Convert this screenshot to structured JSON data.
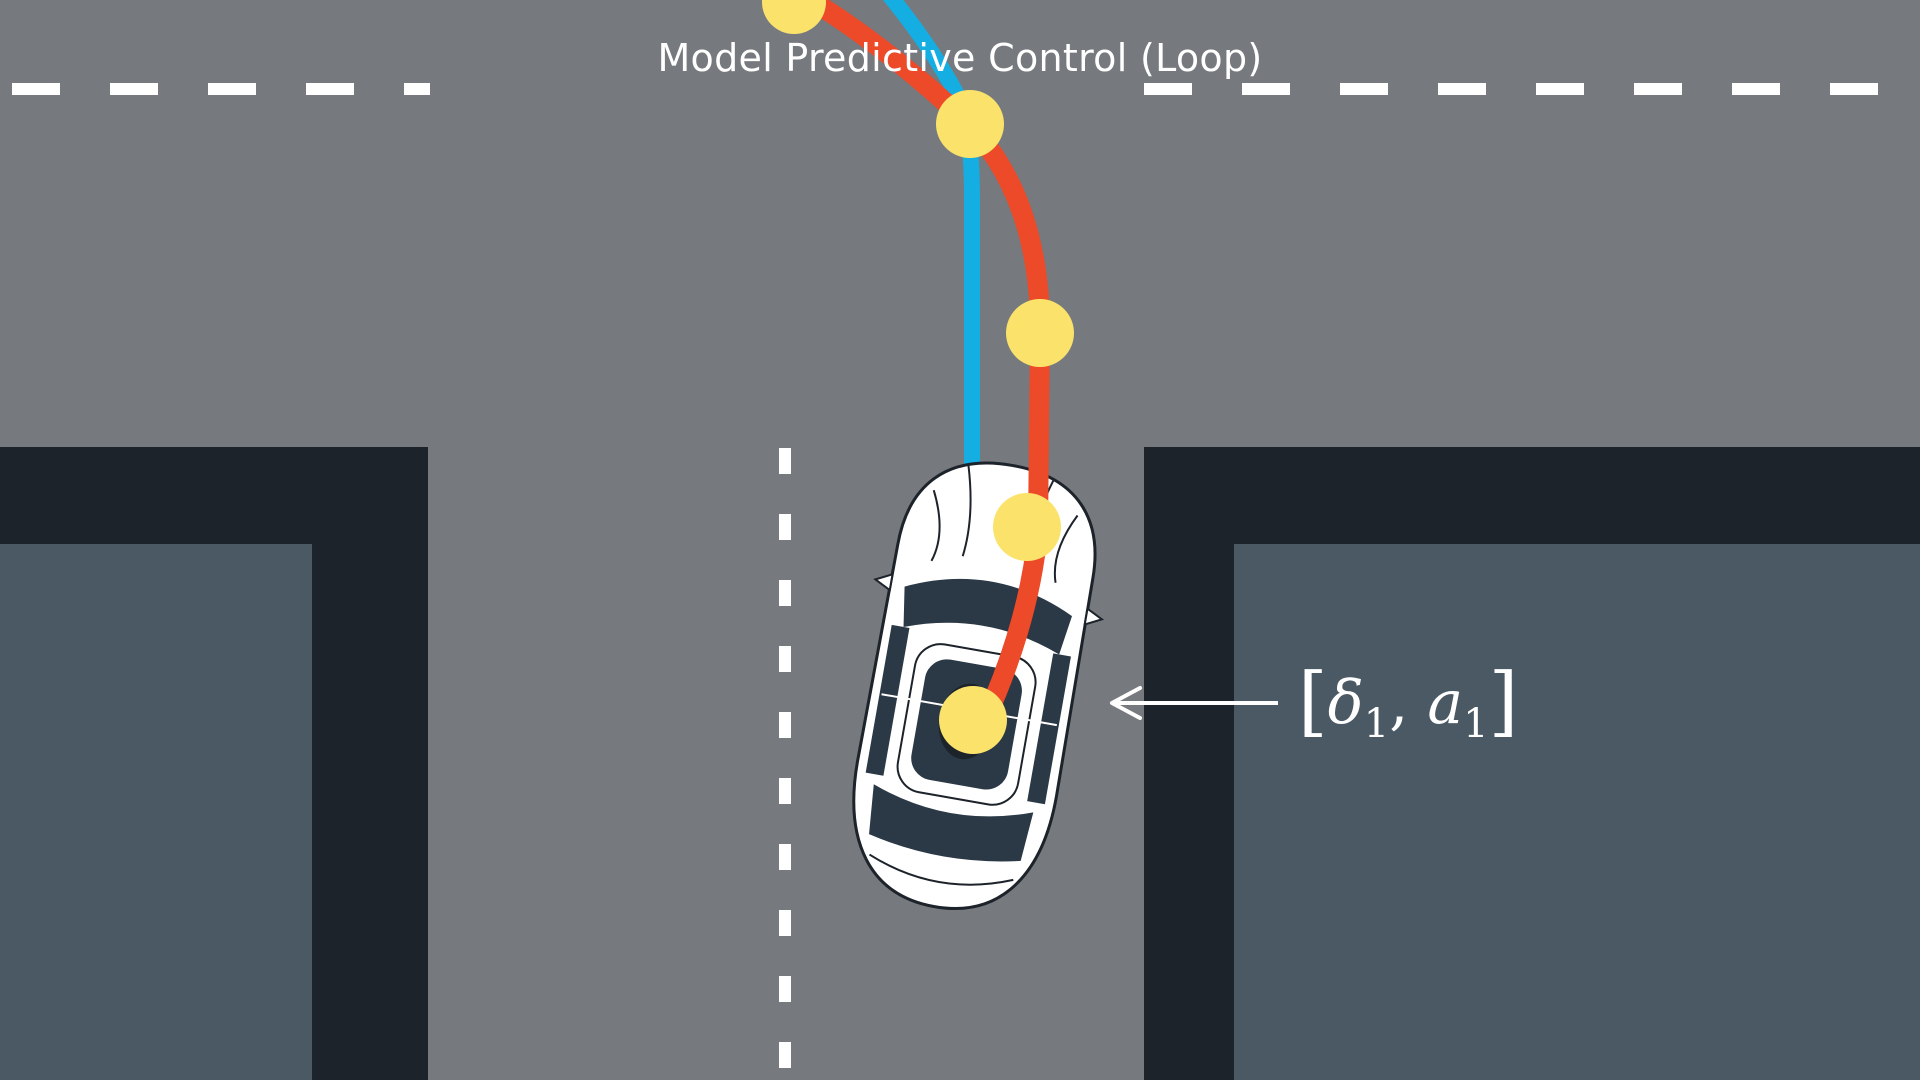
{
  "title": "Model Predictive Control (Loop)",
  "annotation": {
    "open_bracket": "[",
    "delta_symbol": "δ",
    "delta_index": "1",
    "separator": ", ",
    "accel_symbol": "a",
    "accel_index": "1",
    "close_bracket": "]"
  },
  "colors": {
    "road": "#76797e",
    "building_roof": "#4b5965",
    "building_wall": "#1d232a",
    "lane_marking": "#ffffff",
    "reference_trajectory": "#14aee3",
    "predicted_trajectory": "#ec4a28",
    "waypoint": "#fbe36b",
    "car_body": "#ffffff",
    "car_stripe": "#2b3845"
  }
}
